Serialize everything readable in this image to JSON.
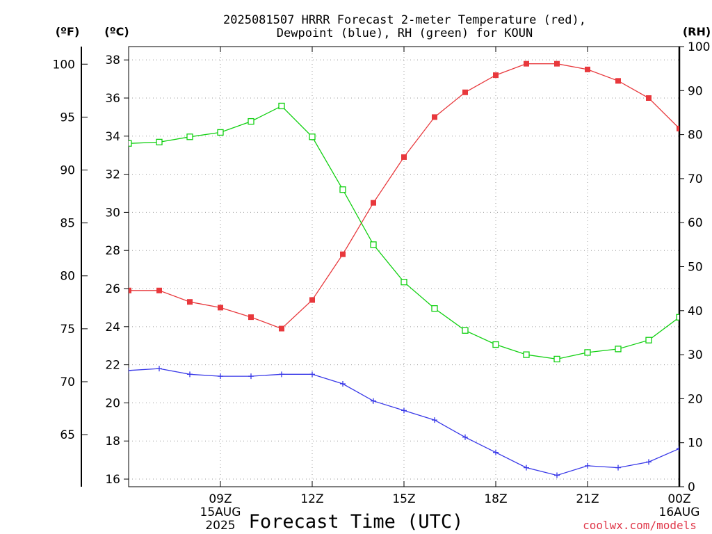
{
  "chart_data": {
    "type": "line",
    "title_lines": [
      "2025081507 HRRR Forecast 2-meter Temperature (red),",
      "Dewpoint (blue), RH (green) for KOUN"
    ],
    "xlabel": "Forecast Time (UTC)",
    "credit": "coolwx.com/models",
    "units": {
      "left_outer": "(ºF)",
      "left_inner": "(ºC)",
      "right": "(RH)"
    },
    "axes": {
      "x_hours": [
        6,
        24
      ],
      "celsius": {
        "range": [
          15.6,
          38.7
        ],
        "ticks": [
          16,
          18,
          20,
          22,
          24,
          26,
          28,
          30,
          32,
          34,
          36,
          38
        ]
      },
      "fahrenheit": {
        "ticks": [
          65,
          70,
          75,
          80,
          85,
          90,
          95,
          100
        ]
      },
      "rh": {
        "range": [
          0,
          100
        ],
        "ticks": [
          0,
          10,
          20,
          30,
          40,
          50,
          60,
          70,
          80,
          90,
          100
        ]
      }
    },
    "x_ticks": [
      {
        "hour": 9,
        "lines": [
          "09Z",
          "15AUG",
          "2025"
        ]
      },
      {
        "hour": 12,
        "lines": [
          "12Z"
        ]
      },
      {
        "hour": 15,
        "lines": [
          "15Z"
        ]
      },
      {
        "hour": 18,
        "lines": [
          "18Z"
        ]
      },
      {
        "hour": 21,
        "lines": [
          "21Z"
        ]
      },
      {
        "hour": 24,
        "lines": [
          "00Z",
          "16AUG"
        ]
      }
    ],
    "x": [
      6,
      7,
      8,
      9,
      10,
      11,
      12,
      13,
      14,
      15,
      16,
      17,
      18,
      19,
      20,
      21,
      22,
      23,
      24,
      24.9
    ],
    "grid": true,
    "series": [
      {
        "axis": "celsius",
        "color": "#e8383c",
        "marker": "filled-square",
        "values": [
          25.9,
          25.9,
          25.3,
          25.0,
          24.5,
          23.9,
          25.4,
          27.8,
          30.5,
          32.9,
          35.0,
          36.3,
          37.2,
          37.8,
          37.8,
          37.5,
          36.9,
          36.0,
          34.4,
          33.0
        ]
      },
      {
        "axis": "celsius",
        "color": "#3838e8",
        "marker": "plus",
        "values": [
          21.7,
          21.8,
          21.5,
          21.4,
          21.4,
          21.5,
          21.5,
          21.0,
          20.1,
          19.6,
          19.1,
          18.2,
          17.4,
          16.6,
          16.2,
          16.7,
          16.6,
          16.9,
          17.6,
          18.3
        ]
      },
      {
        "axis": "rh",
        "color": "#10d010",
        "marker": "open-square",
        "values": [
          78.0,
          78.3,
          79.5,
          80.5,
          83.0,
          86.5,
          79.5,
          67.5,
          55.0,
          46.5,
          40.5,
          35.5,
          32.3,
          30.0,
          29.0,
          30.5,
          31.3,
          33.3,
          38.5,
          43.0
        ]
      }
    ]
  }
}
